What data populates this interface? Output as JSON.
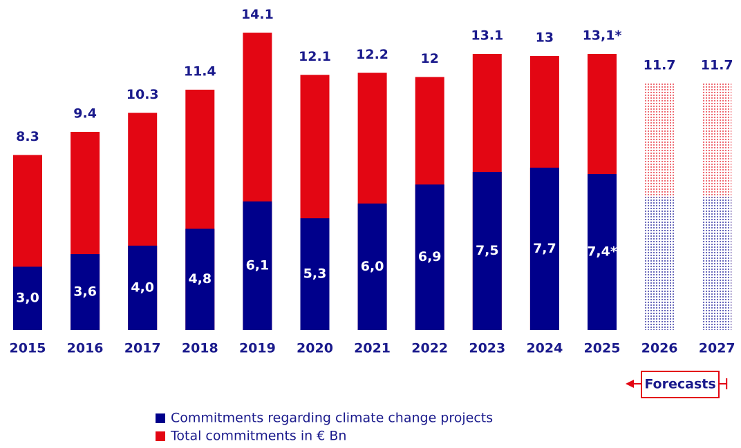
{
  "chart_data": {
    "type": "overlap-bar",
    "categories": [
      "2015",
      "2016",
      "2017",
      "2018",
      "2019",
      "2020",
      "2021",
      "2022",
      "2023",
      "2024",
      "2025",
      "2026",
      "2027"
    ],
    "series": [
      {
        "name": "Commitments regarding climate change projects",
        "color": "#00008b",
        "values": [
          3.0,
          3.6,
          4.0,
          4.8,
          6.1,
          5.3,
          6.0,
          6.9,
          7.5,
          7.7,
          7.4,
          6.3,
          6.3
        ],
        "value_labels": [
          "3,0",
          "3,6",
          "4,0",
          "4,8",
          "6,1",
          "5,3",
          "6,0",
          "6,9",
          "7,5",
          "7,7",
          "7,4*",
          null,
          null
        ]
      },
      {
        "name": "Total commitments in € Bn",
        "color": "#e30613",
        "values": [
          8.3,
          9.4,
          10.3,
          11.4,
          14.1,
          12.1,
          12.2,
          12,
          13.1,
          13,
          13.1,
          11.7,
          11.7
        ],
        "value_labels": [
          "8.3",
          "9.4",
          "10.3",
          "11.4",
          "14.1",
          "12.1",
          "12.2",
          "12",
          "13.1",
          "13",
          "13,1*",
          "11.7",
          "11.7"
        ]
      }
    ],
    "ylim": [
      0,
      15
    ],
    "annotations": [
      {
        "text": "Forecasts",
        "from": 11,
        "to": 12
      }
    ]
  }
}
